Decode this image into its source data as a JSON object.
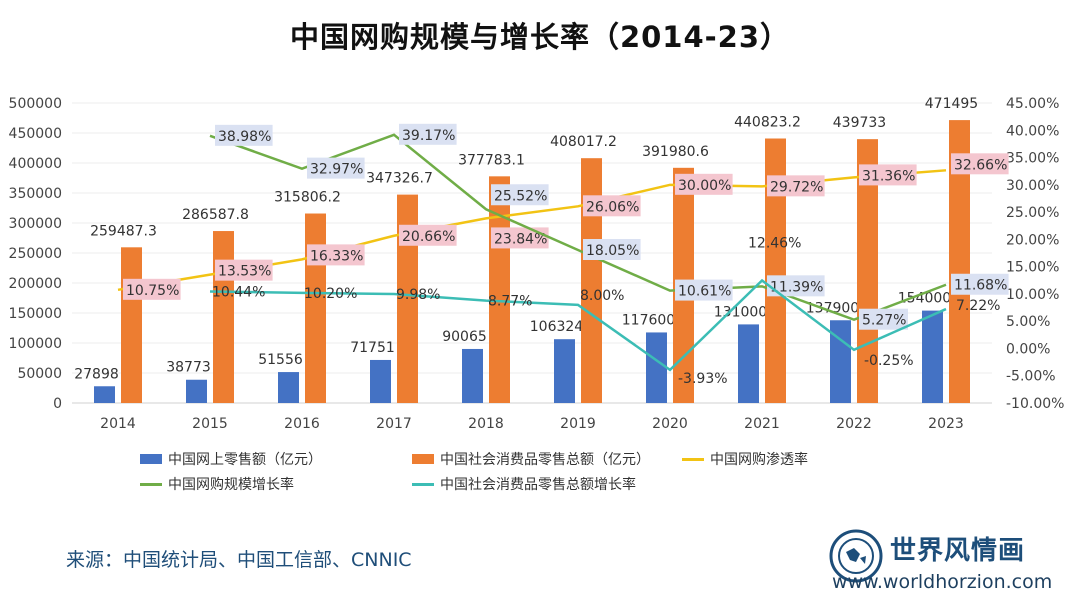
{
  "title": "中国网购规模与增长率（2014-23）",
  "source": "来源：中国统计局、中国工信部、CNNIC",
  "logo": {
    "name": "世界风情画",
    "url": "www.worldhorzion.com"
  },
  "chart_data": {
    "type": "bar",
    "title": "中国网购规模与增长率（2014-23）",
    "categories": [
      "2014",
      "2015",
      "2016",
      "2017",
      "2018",
      "2019",
      "2020",
      "2021",
      "2022",
      "2023"
    ],
    "left_axis": {
      "ylim": [
        0,
        500000
      ],
      "ticks": [
        "0",
        "50000",
        "100000",
        "150000",
        "200000",
        "250000",
        "300000",
        "350000",
        "400000",
        "450000",
        "500000"
      ]
    },
    "right_axis": {
      "ylim": [
        -10,
        45
      ],
      "ticks": [
        "-10.00%",
        "-5.00%",
        "0.00%",
        "5.00%",
        "10.00%",
        "15.00%",
        "20.00%",
        "25.00%",
        "30.00%",
        "35.00%",
        "40.00%",
        "45.00%"
      ]
    },
    "grid": true,
    "legend_position": "bottom",
    "bar_series": [
      {
        "name": "中国网上零售额（亿元）",
        "color": "#4472c4",
        "values": [
          27898,
          38773,
          51556,
          71751,
          90065,
          106324,
          117600,
          131000,
          137900,
          154000
        ],
        "labels": [
          "27898",
          "38773",
          "51556",
          "71751",
          "90065",
          "106324",
          "117600",
          "131000",
          "137900",
          "154000"
        ]
      },
      {
        "name": "中国社会消费品零售总额（亿元）",
        "color": "#ed7d31",
        "values": [
          259487.3,
          286587.8,
          315806.2,
          347326.7,
          377783.1,
          408017.2,
          391980.6,
          440823.2,
          439733,
          471495
        ],
        "labels": [
          "259487.3",
          "286587.8",
          "315806.2",
          "347326.7",
          "377783.1",
          "408017.2",
          "391980.6",
          "440823.2",
          "439733",
          "471495"
        ]
      }
    ],
    "line_series": [
      {
        "name": "中国网购渗透率",
        "color": "#f2c314",
        "label_bg": "#f4c6cf",
        "values": [
          10.75,
          13.53,
          16.33,
          20.66,
          23.84,
          26.06,
          30.0,
          29.72,
          31.36,
          32.66
        ],
        "labels": [
          "10.75%",
          "13.53%",
          "16.33%",
          "20.66%",
          "23.84%",
          "26.06%",
          "30.00%",
          "29.72%",
          "31.36%",
          "32.66%"
        ]
      },
      {
        "name": "中国网购规模增长率",
        "color": "#70ad47",
        "label_bg": "#dae1f2",
        "values": [
          null,
          38.98,
          32.97,
          39.17,
          25.52,
          18.05,
          10.61,
          11.39,
          5.27,
          11.68
        ],
        "labels": [
          null,
          "38.98%",
          "32.97%",
          "39.17%",
          "25.52%",
          "18.05%",
          "10.61%",
          "11.39%",
          "5.27%",
          "11.68%"
        ]
      },
      {
        "name": "中国社会消费品零售总额增长率",
        "color": "#3cbdb5",
        "label_bg": "",
        "values": [
          null,
          10.44,
          10.2,
          9.98,
          8.77,
          8.0,
          -3.93,
          12.46,
          -0.25,
          7.22
        ],
        "labels": [
          null,
          "10.44%",
          "10.20%",
          "9.98%",
          "8.77%",
          "8.00%",
          "-3.93%",
          "12.46%",
          "-0.25%",
          "7.22%"
        ]
      }
    ]
  }
}
